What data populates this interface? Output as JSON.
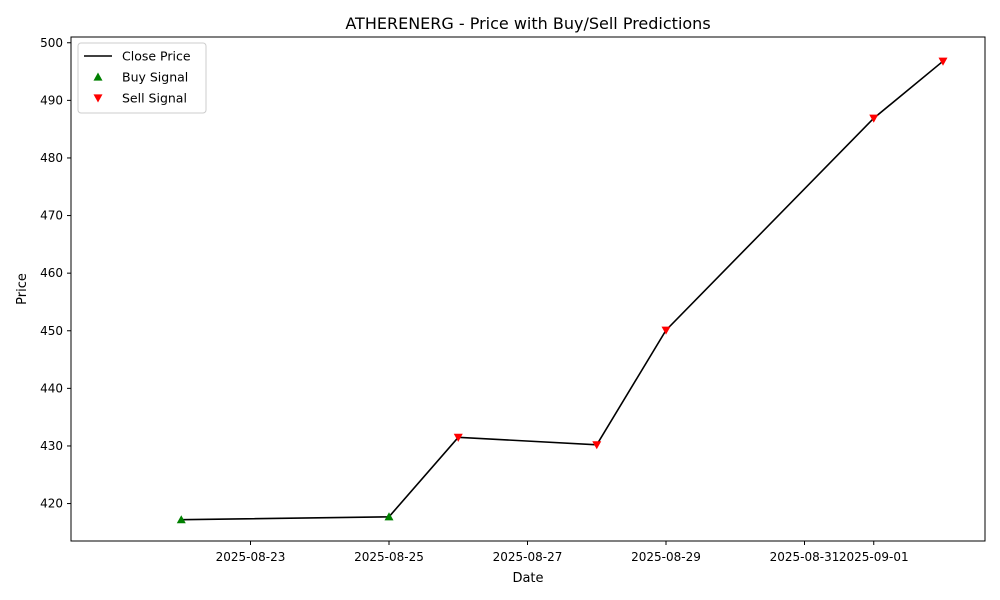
{
  "chart_data": {
    "type": "line",
    "title": "ATHERENERG - Price with Buy/Sell Predictions",
    "xlabel": "Date",
    "ylabel": "Price",
    "x_ticks": [
      "2025-08-23",
      "2025-08-25",
      "2025-08-27",
      "2025-08-29",
      "2025-08-31",
      "2025-09-01"
    ],
    "y_ticks": [
      420,
      430,
      440,
      450,
      460,
      470,
      480,
      490,
      500
    ],
    "xlim": [
      "2025-08-21",
      "2025-09-02"
    ],
    "ylim": [
      413.5,
      501
    ],
    "grid": false,
    "legend_position": "top-left",
    "series": [
      {
        "name": "Close Price",
        "kind": "line",
        "color": "#000000",
        "points": [
          {
            "x": "2025-08-22",
            "y": 417.2
          },
          {
            "x": "2025-08-25",
            "y": 417.7
          },
          {
            "x": "2025-08-26",
            "y": 431.5
          },
          {
            "x": "2025-08-28",
            "y": 430.2
          },
          {
            "x": "2025-08-29",
            "y": 450.1
          },
          {
            "x": "2025-09-01",
            "y": 486.9
          },
          {
            "x": "2025-09-02",
            "y": 496.8
          }
        ]
      },
      {
        "name": "Buy Signal",
        "kind": "marker-up",
        "color": "#008000",
        "points": [
          {
            "x": "2025-08-22",
            "y": 417.2
          },
          {
            "x": "2025-08-25",
            "y": 417.7
          }
        ]
      },
      {
        "name": "Sell Signal",
        "kind": "marker-down",
        "color": "#ff0000",
        "points": [
          {
            "x": "2025-08-26",
            "y": 431.5
          },
          {
            "x": "2025-08-28",
            "y": 430.2
          },
          {
            "x": "2025-08-29",
            "y": 450.1
          },
          {
            "x": "2025-09-01",
            "y": 486.9
          },
          {
            "x": "2025-09-02",
            "y": 496.8
          }
        ]
      }
    ]
  }
}
